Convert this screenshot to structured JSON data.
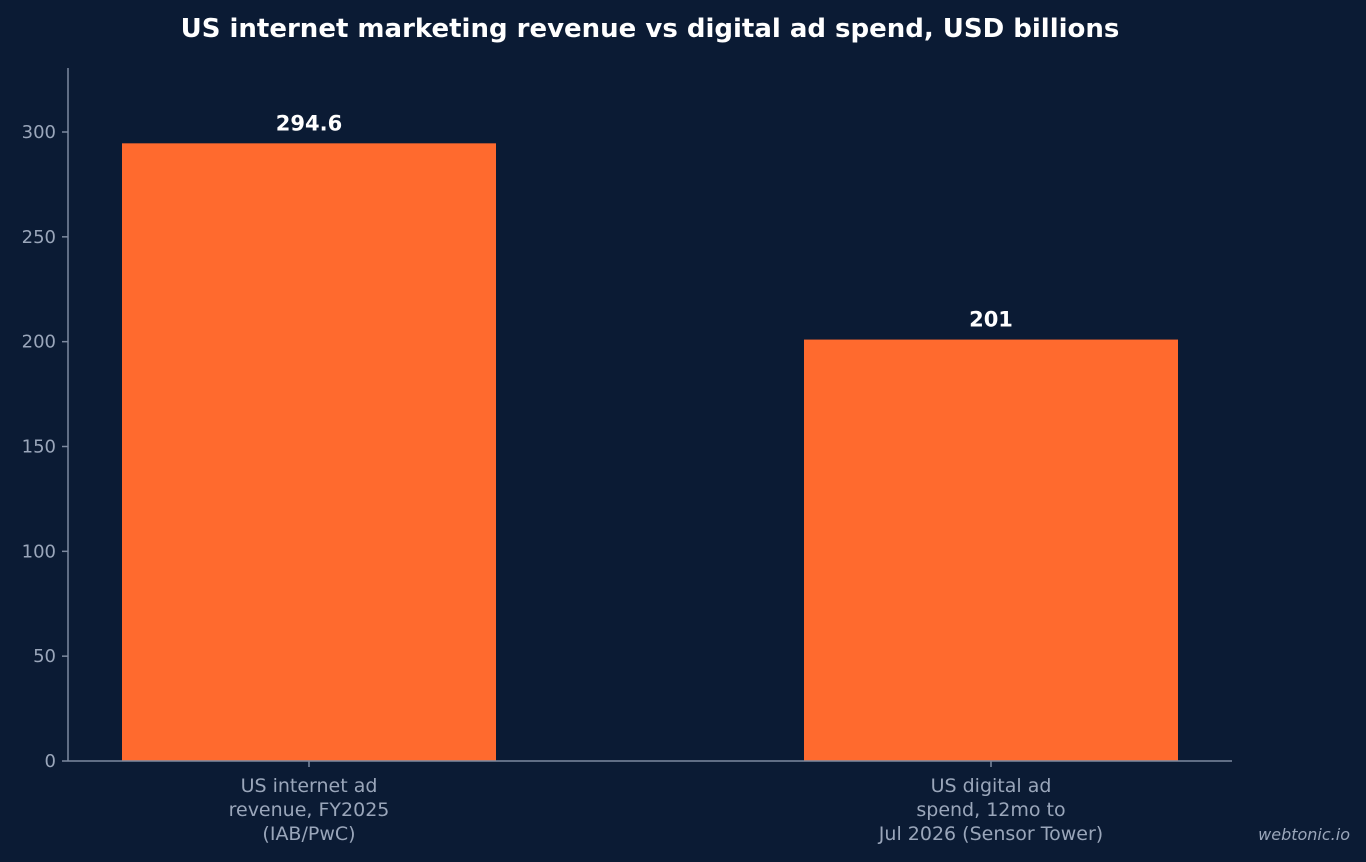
{
  "chart_data": {
    "type": "bar",
    "title": "US internet marketing revenue vs digital ad spend, USD billions",
    "categories": [
      [
        "US internet ad",
        "revenue, FY2025",
        "(IAB/PwC)"
      ],
      [
        "US digital ad",
        "spend, 12mo to",
        "Jul 2026 (Sensor Tower)"
      ]
    ],
    "values": [
      294.6,
      201
    ],
    "value_labels": [
      "294.6",
      "201"
    ],
    "xlabel": "",
    "ylabel": "",
    "ylim": [
      0,
      330
    ],
    "yticks": [
      0,
      50,
      100,
      150,
      200,
      250,
      300
    ],
    "grid": false,
    "bar_color": "#ff6a2e"
  },
  "watermark": "webtonic.io",
  "colors": {
    "background": "#0b1b34",
    "axis": "#7d8aa0",
    "tick_text": "#9aa6ba",
    "value_text": "#ffffff"
  }
}
